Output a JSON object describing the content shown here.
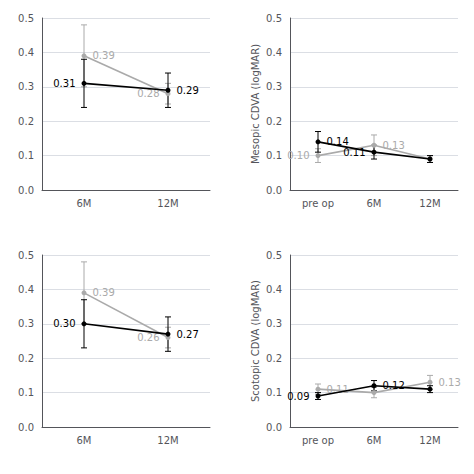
{
  "chart_data": [
    {
      "type": "line",
      "categories": [
        "6M",
        "12M"
      ],
      "ylim": [
        0.0,
        0.5
      ],
      "yticks": [
        {
          "value": 0.0,
          "label": "0.0"
        },
        0.1,
        0.2,
        0.3,
        0.4,
        0.5
      ],
      "grid": true,
      "series": [
        {
          "color": "#aaaaaa",
          "marker": "circle",
          "values": [
            0.39,
            0.28
          ],
          "errors": [
            0.09,
            0.03
          ],
          "value_labels": [
            "0.39",
            "0.28"
          ]
        },
        {
          "color": "#000000",
          "marker": "circle",
          "values": [
            0.31,
            0.29
          ],
          "errors": [
            0.07,
            0.05
          ],
          "value_labels": [
            "0.31",
            "0.29"
          ]
        }
      ]
    },
    {
      "type": "line",
      "categories": [
        "pre op",
        "6M",
        "12M"
      ],
      "ylim": [
        0.0,
        0.5
      ],
      "yticks": [
        {
          "value": 0.0,
          "label": "0.0"
        },
        0.1,
        0.2,
        0.3,
        0.4,
        0.5
      ],
      "ylabel": "Mesopic CDVA (logMAR)",
      "grid": true,
      "series": [
        {
          "color": "#aaaaaa",
          "marker": "circle",
          "values": [
            0.1,
            0.13,
            0.09
          ],
          "errors": [
            0.02,
            0.03,
            0.01
          ],
          "value_labels": [
            "0.10",
            "0.13",
            null
          ]
        },
        {
          "color": "#000000",
          "marker": "circle",
          "values": [
            0.14,
            0.11,
            0.09
          ],
          "errors": [
            0.03,
            0.02,
            0.01
          ],
          "value_labels": [
            "0.14",
            "0.11",
            null
          ]
        }
      ]
    },
    {
      "type": "line",
      "categories": [
        "6M",
        "12M"
      ],
      "ylim": [
        0.0,
        0.5
      ],
      "yticks": [
        {
          "value": 0.0,
          "label": "0.0"
        },
        0.1,
        0.2,
        0.3,
        0.4,
        0.5
      ],
      "grid": true,
      "series": [
        {
          "color": "#aaaaaa",
          "marker": "circle",
          "values": [
            0.39,
            0.26
          ],
          "errors": [
            0.09,
            0.03
          ],
          "value_labels": [
            "0.39",
            "0.26"
          ]
        },
        {
          "color": "#000000",
          "marker": "circle",
          "values": [
            0.3,
            0.27
          ],
          "errors": [
            0.07,
            0.05
          ],
          "value_labels": [
            "0.30",
            "0.27"
          ]
        }
      ]
    },
    {
      "type": "line",
      "categories": [
        "pre op",
        "6M",
        "12M"
      ],
      "ylim": [
        0.0,
        0.5
      ],
      "yticks": [
        {
          "value": 0.0,
          "label": "0.0"
        },
        0.1,
        0.2,
        0.3,
        0.4,
        0.5
      ],
      "ylabel": "Scotopic CDVA (logMAR)",
      "grid": true,
      "series": [
        {
          "color": "#aaaaaa",
          "marker": "circle",
          "values": [
            0.11,
            0.1,
            0.13
          ],
          "errors": [
            0.015,
            0.015,
            0.02
          ],
          "value_labels": [
            "0.11",
            null,
            "0.13"
          ]
        },
        {
          "color": "#000000",
          "marker": "circle",
          "values": [
            0.09,
            0.12,
            0.11
          ],
          "errors": [
            0.01,
            0.015,
            0.01
          ],
          "value_labels": [
            "0.09",
            "0.12",
            null
          ]
        }
      ]
    }
  ]
}
